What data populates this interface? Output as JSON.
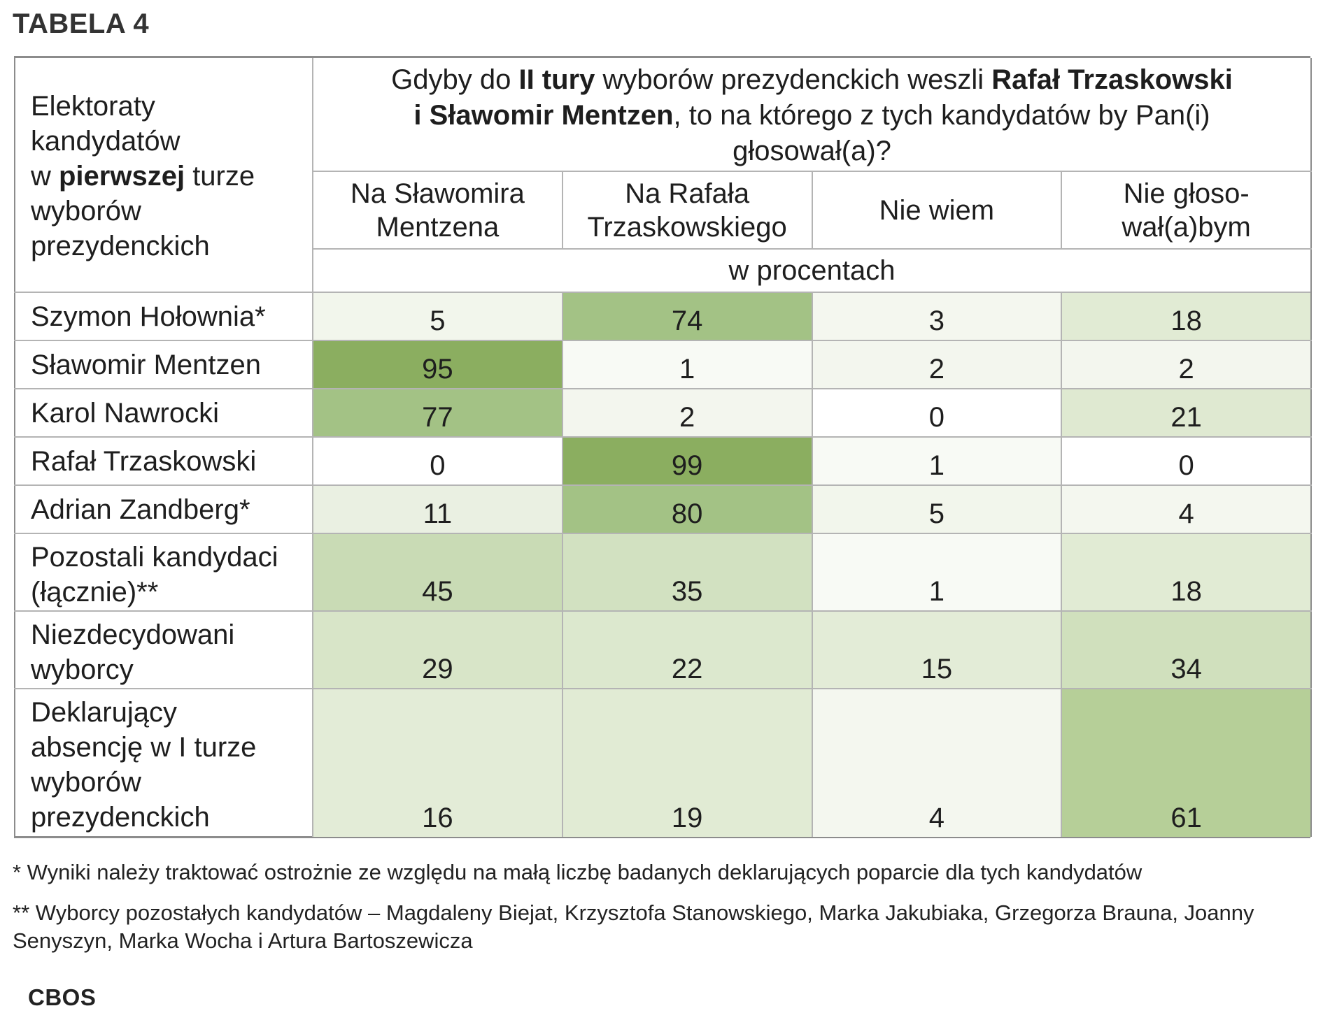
{
  "title": "TABELA 4",
  "header": {
    "row_label": {
      "line1": "Elektoraty",
      "line2": "kandydatów",
      "line3_pre": "w ",
      "line3_bold": "pierwszej",
      "line3_post": " turze",
      "line4": "wyborów",
      "line5": "prezydenckich"
    },
    "question": {
      "p1": "Gdyby do ",
      "b1": "II tury",
      "p2": " wyborów prezydenckich weszli ",
      "b2": "Rafał Trzaskowski",
      "b3": "i Sławomir Mentzen",
      "p3": ", to na którego z tych kandydatów by Pan(i) głosował(a)?"
    },
    "columns": [
      {
        "line1": "Na Sławomira",
        "line2": "Mentzena"
      },
      {
        "line1": "Na Rafała",
        "line2": "Trzaskowskiego"
      },
      {
        "line1": "Nie wiem",
        "line2": ""
      },
      {
        "line1": "Nie głoso-",
        "line2": "wał(a)bym"
      }
    ],
    "unit": "w procentach"
  },
  "rows": [
    {
      "label": "Szymon Hołownia*",
      "values": [
        "5",
        "74",
        "3",
        "18"
      ],
      "colors": [
        "#f2f6ec",
        "#a3c285",
        "#f4f7ef",
        "#e1ebd4"
      ]
    },
    {
      "label": "Sławomir Mentzen",
      "values": [
        "95",
        "1",
        "2",
        "2"
      ],
      "colors": [
        "#8bae60",
        "#f8faf5",
        "#f3f6ee",
        "#f3f6ee"
      ]
    },
    {
      "label": "Karol Nawrocki",
      "values": [
        "77",
        "2",
        "0",
        "21"
      ],
      "colors": [
        "#a3c285",
        "#f3f6ee",
        "#ffffff",
        "#dfe9d1"
      ]
    },
    {
      "label": "Rafał Trzaskowski",
      "values": [
        "0",
        "99",
        "1",
        "0"
      ],
      "colors": [
        "#ffffff",
        "#8bae60",
        "#f8faf5",
        "#ffffff"
      ]
    },
    {
      "label": "Adrian Zandberg*",
      "values": [
        "11",
        "80",
        "5",
        "4"
      ],
      "colors": [
        "#eaf0e2",
        "#a3c285",
        "#f2f6ec",
        "#f4f7ef"
      ]
    },
    {
      "label": "Pozostali kandydaci (łącznie)**",
      "label_lines": [
        "Pozostali kandydaci",
        "(łącznie)**"
      ],
      "values": [
        "45",
        "35",
        "1",
        "18"
      ],
      "colors": [
        "#c9dbb5",
        "#d2e1c1",
        "#f8faf5",
        "#e1ebd4"
      ]
    },
    {
      "label": "Niezdecydowani wyborcy",
      "label_lines": [
        "Niezdecydowani",
        "wyborcy"
      ],
      "values": [
        "29",
        "22",
        "15",
        "34"
      ],
      "colors": [
        "#d8e5c8",
        "#dce8ce",
        "#e3ecd7",
        "#d0e0bd"
      ]
    },
    {
      "label": "Deklarujący absencję w I turze wyborów prezydenckich",
      "label_lines": [
        "Deklarujący",
        "absencję w I turze",
        "wyborów",
        "prezydenckich"
      ],
      "values": [
        "16",
        "19",
        "4",
        "61"
      ],
      "colors": [
        "#e3ecd7",
        "#e1ebd4",
        "#f4f7ef",
        "#b6cf98"
      ]
    }
  ],
  "notes": {
    "note1": "* Wyniki należy traktować ostrożnie ze względu na małą liczbę badanych deklarujących poparcie dla tych kandydatów",
    "note2": "** Wyborcy pozostałych kandydatów – Magdaleny Biejat, Krzysztofa Stanowskiego, Marka Jakubiaka, Grzegorza Brauna, Joanny Senyszyn, Marka Wocha i Artura Bartoszewicza"
  },
  "source": "CBOS"
}
